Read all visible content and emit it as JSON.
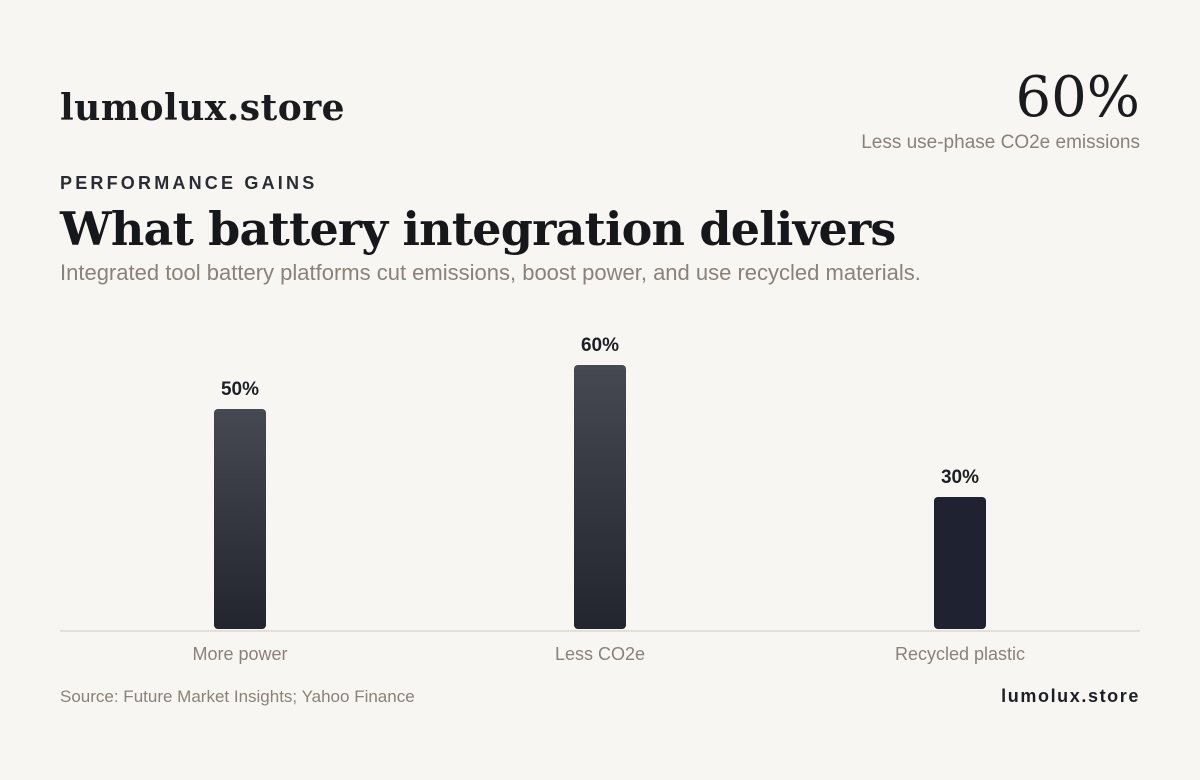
{
  "header": {
    "brand": "lumolux.store",
    "stat_value": "60%",
    "stat_label": "Less use-phase CO2e emissions"
  },
  "eyebrow": "PERFORMANCE GAINS",
  "title": "What battery integration delivers",
  "subtitle": "Integrated tool battery platforms cut emissions, boost power, and use recycled materials.",
  "footer": {
    "source": "Source: Future Market Insights; Yahoo Finance",
    "brand": "lumolux.store"
  },
  "colors": {
    "background": "#f8f6f2",
    "bar_top": "#464852",
    "bar_bottom": "#22252e",
    "bar_highlight": "#1f2230",
    "axis": "#dcd8d2",
    "muted_text": "#8a8178"
  },
  "chart_data": {
    "type": "bar",
    "categories": [
      "More power",
      "Less CO2e",
      "Recycled plastic"
    ],
    "values": [
      50,
      60,
      30
    ],
    "value_labels": [
      "50%",
      "60%",
      "30%"
    ],
    "ylim": [
      0,
      60
    ],
    "grid": false,
    "legend": "none"
  }
}
